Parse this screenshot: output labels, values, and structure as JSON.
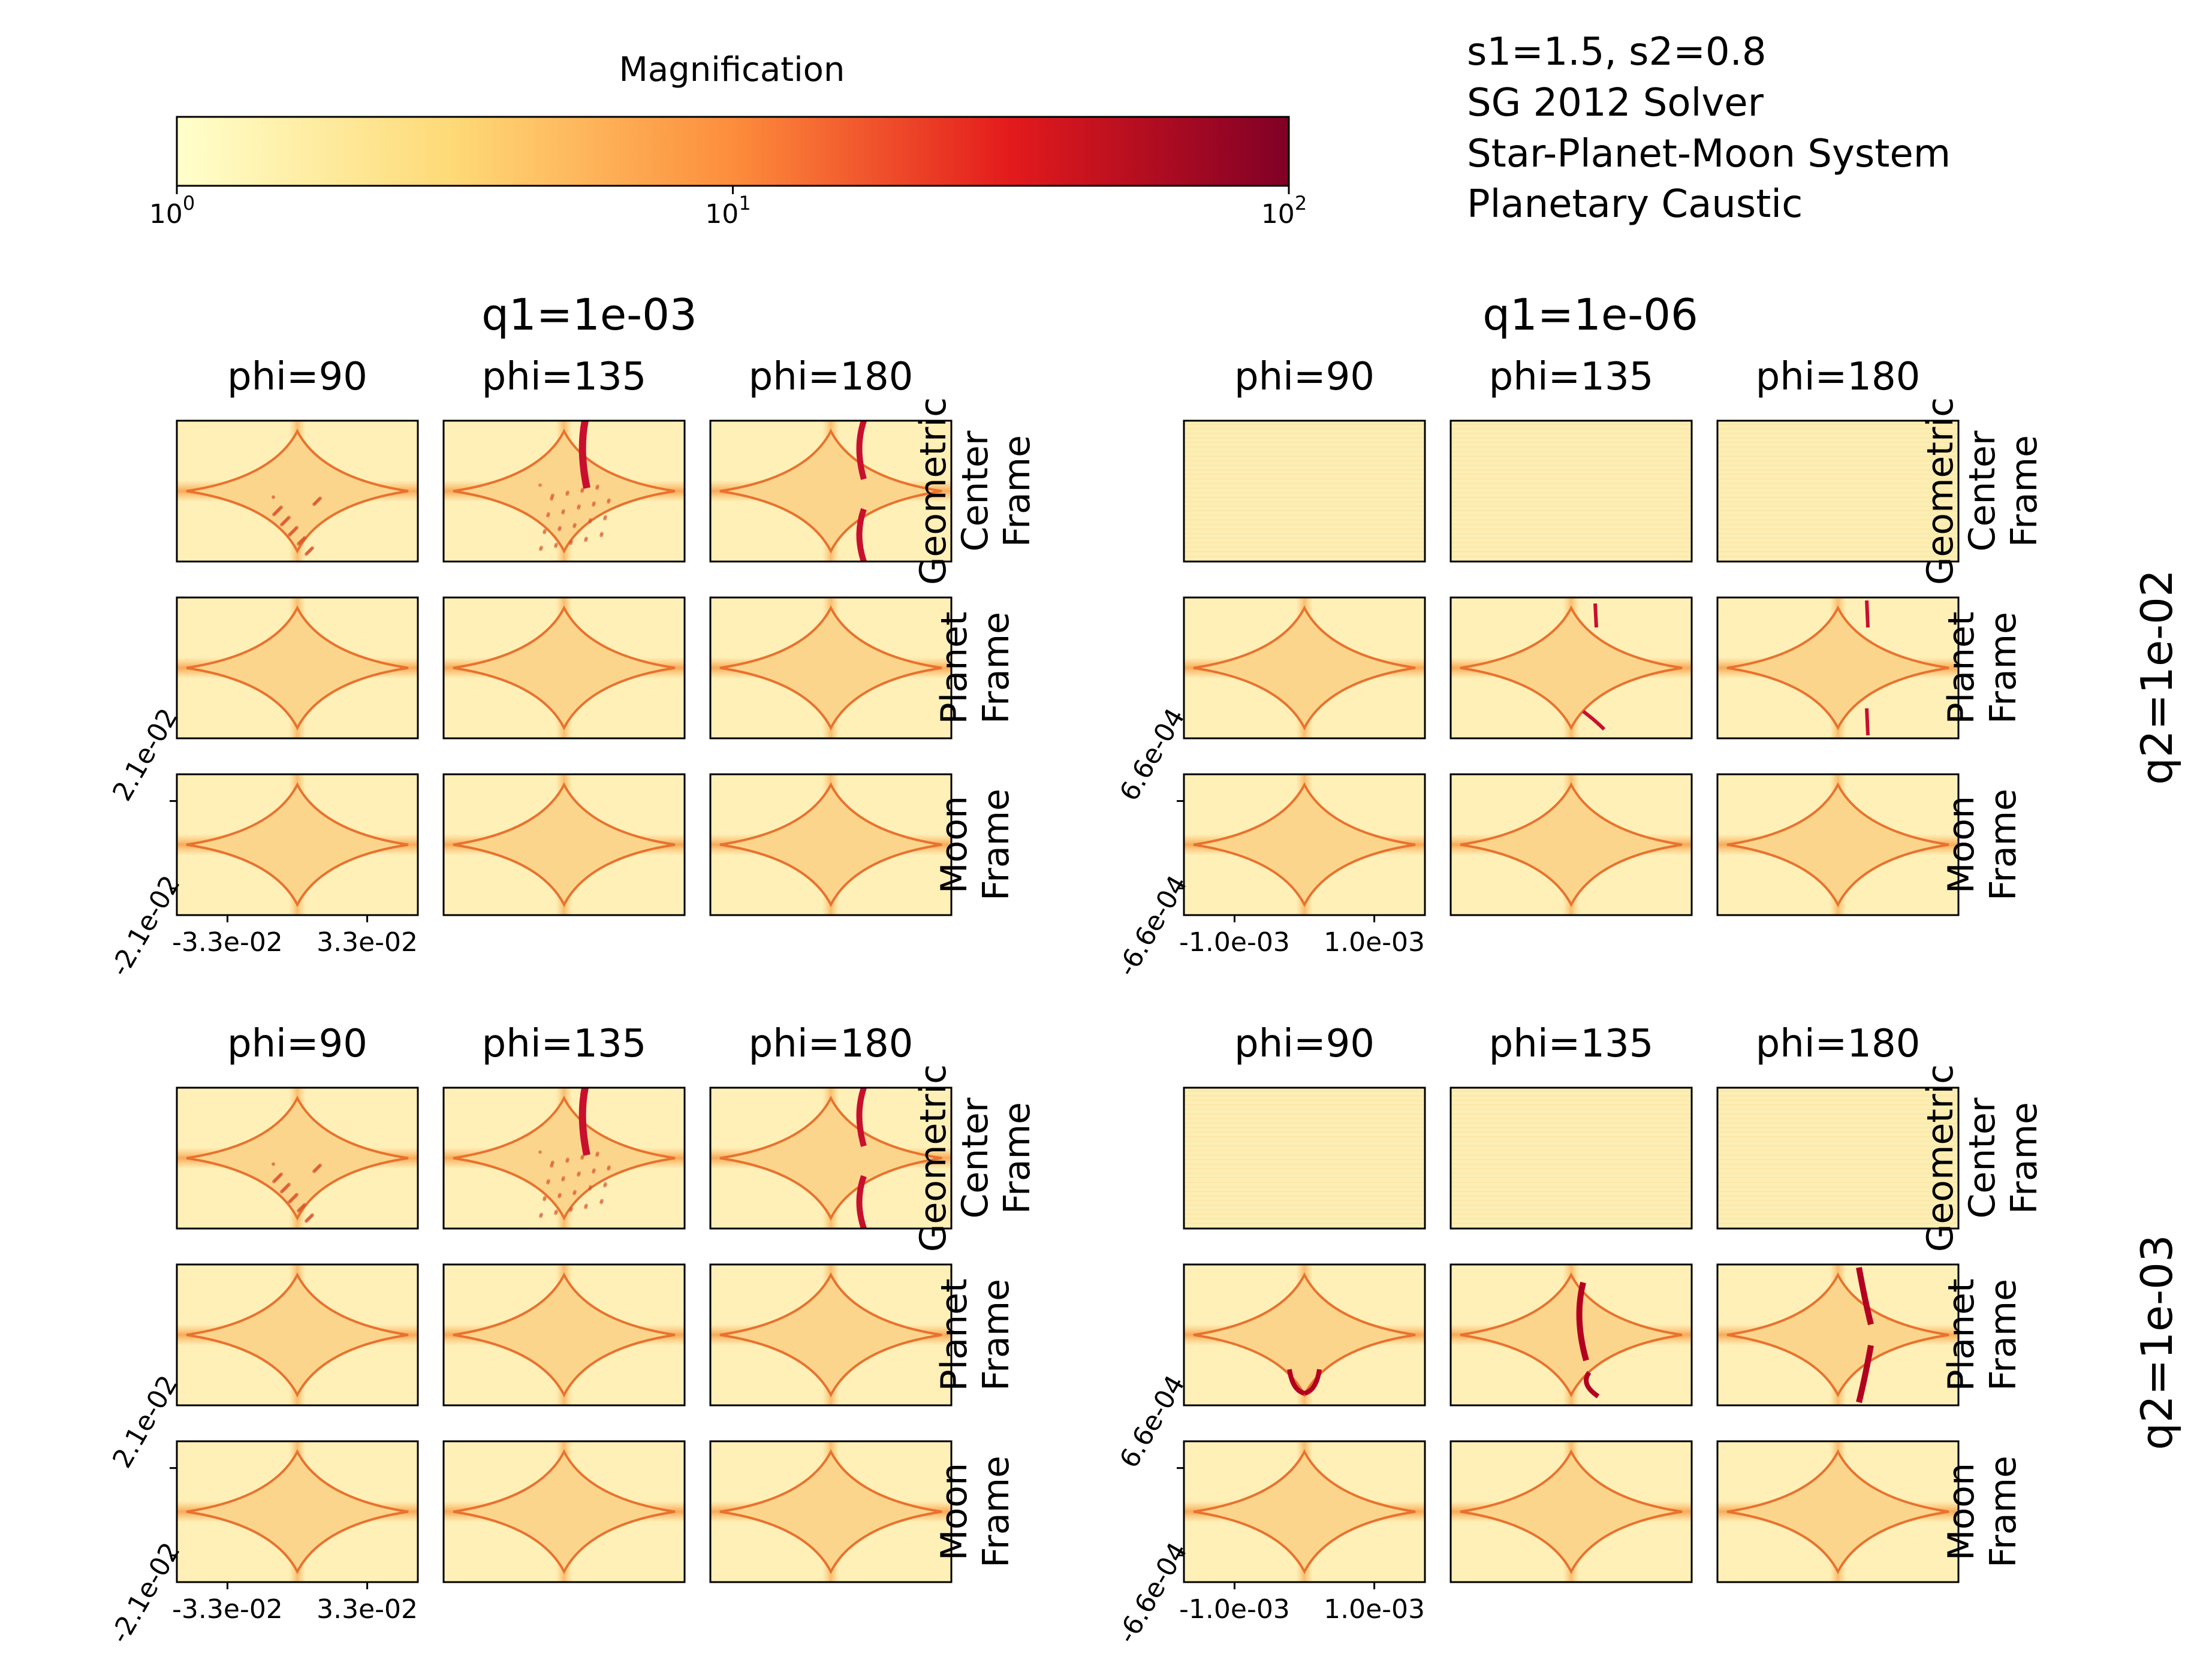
{
  "colorbar": {
    "label": "Magnification",
    "scale": "log",
    "range": [
      1,
      100
    ],
    "ticks": [
      {
        "value": 1,
        "base": "10",
        "exp": "0"
      },
      {
        "value": 10,
        "base": "10",
        "exp": "1"
      },
      {
        "value": 100,
        "base": "10",
        "exp": "2"
      }
    ],
    "colormap": [
      "#ffffcc",
      "#fed976",
      "#fd8d3c",
      "#e31a1c",
      "#800026"
    ]
  },
  "info_lines": [
    "s1=1.5, s2=0.8",
    "SG 2012 Solver",
    "Star-Planet-Moon System",
    "Planetary Caustic"
  ],
  "column_groups": [
    "q1=1e-03",
    "q1=1e-06"
  ],
  "row_groups": [
    "q2=1e-02",
    "q2=1e-03"
  ],
  "phi_labels": [
    "phi=90",
    "phi=135",
    "phi=180"
  ],
  "frames": [
    {
      "line1": "Geometric",
      "line2": "Center",
      "line3": "Frame"
    },
    {
      "line1": "Planet",
      "line2": "Frame"
    },
    {
      "line1": "Moon",
      "line2": "Frame"
    }
  ],
  "axes": {
    "left": {
      "x_ticks": [
        "-3.3e-02",
        "3.3e-02"
      ],
      "y_ticks": [
        "2.1e-02",
        "-2.1e-02"
      ]
    },
    "right": {
      "x_ticks": [
        "-1.0e-03",
        "1.0e-03"
      ],
      "y_ticks": [
        "6.6e-04",
        "-6.6e-04"
      ]
    }
  },
  "chart_data": {
    "type": "heatmap",
    "title": "",
    "grid": false,
    "description_dims": [
      "q2 (row group)",
      "q1 (column group)",
      "frame (row)",
      "phi (column)"
    ],
    "q1_values": [
      "1e-03",
      "1e-06"
    ],
    "q2_values": [
      "1e-02",
      "1e-03"
    ],
    "phi_values": [
      90,
      135,
      180
    ],
    "frame_names": [
      "Geometric Center Frame",
      "Planet Frame",
      "Moon Frame"
    ],
    "color_scale": {
      "label": "Magnification",
      "log": true,
      "min": 1,
      "max": 100
    },
    "panels_note": "Each panel shows a magnification map of the planetary caustic (astroid shape) in the stated frame."
  }
}
